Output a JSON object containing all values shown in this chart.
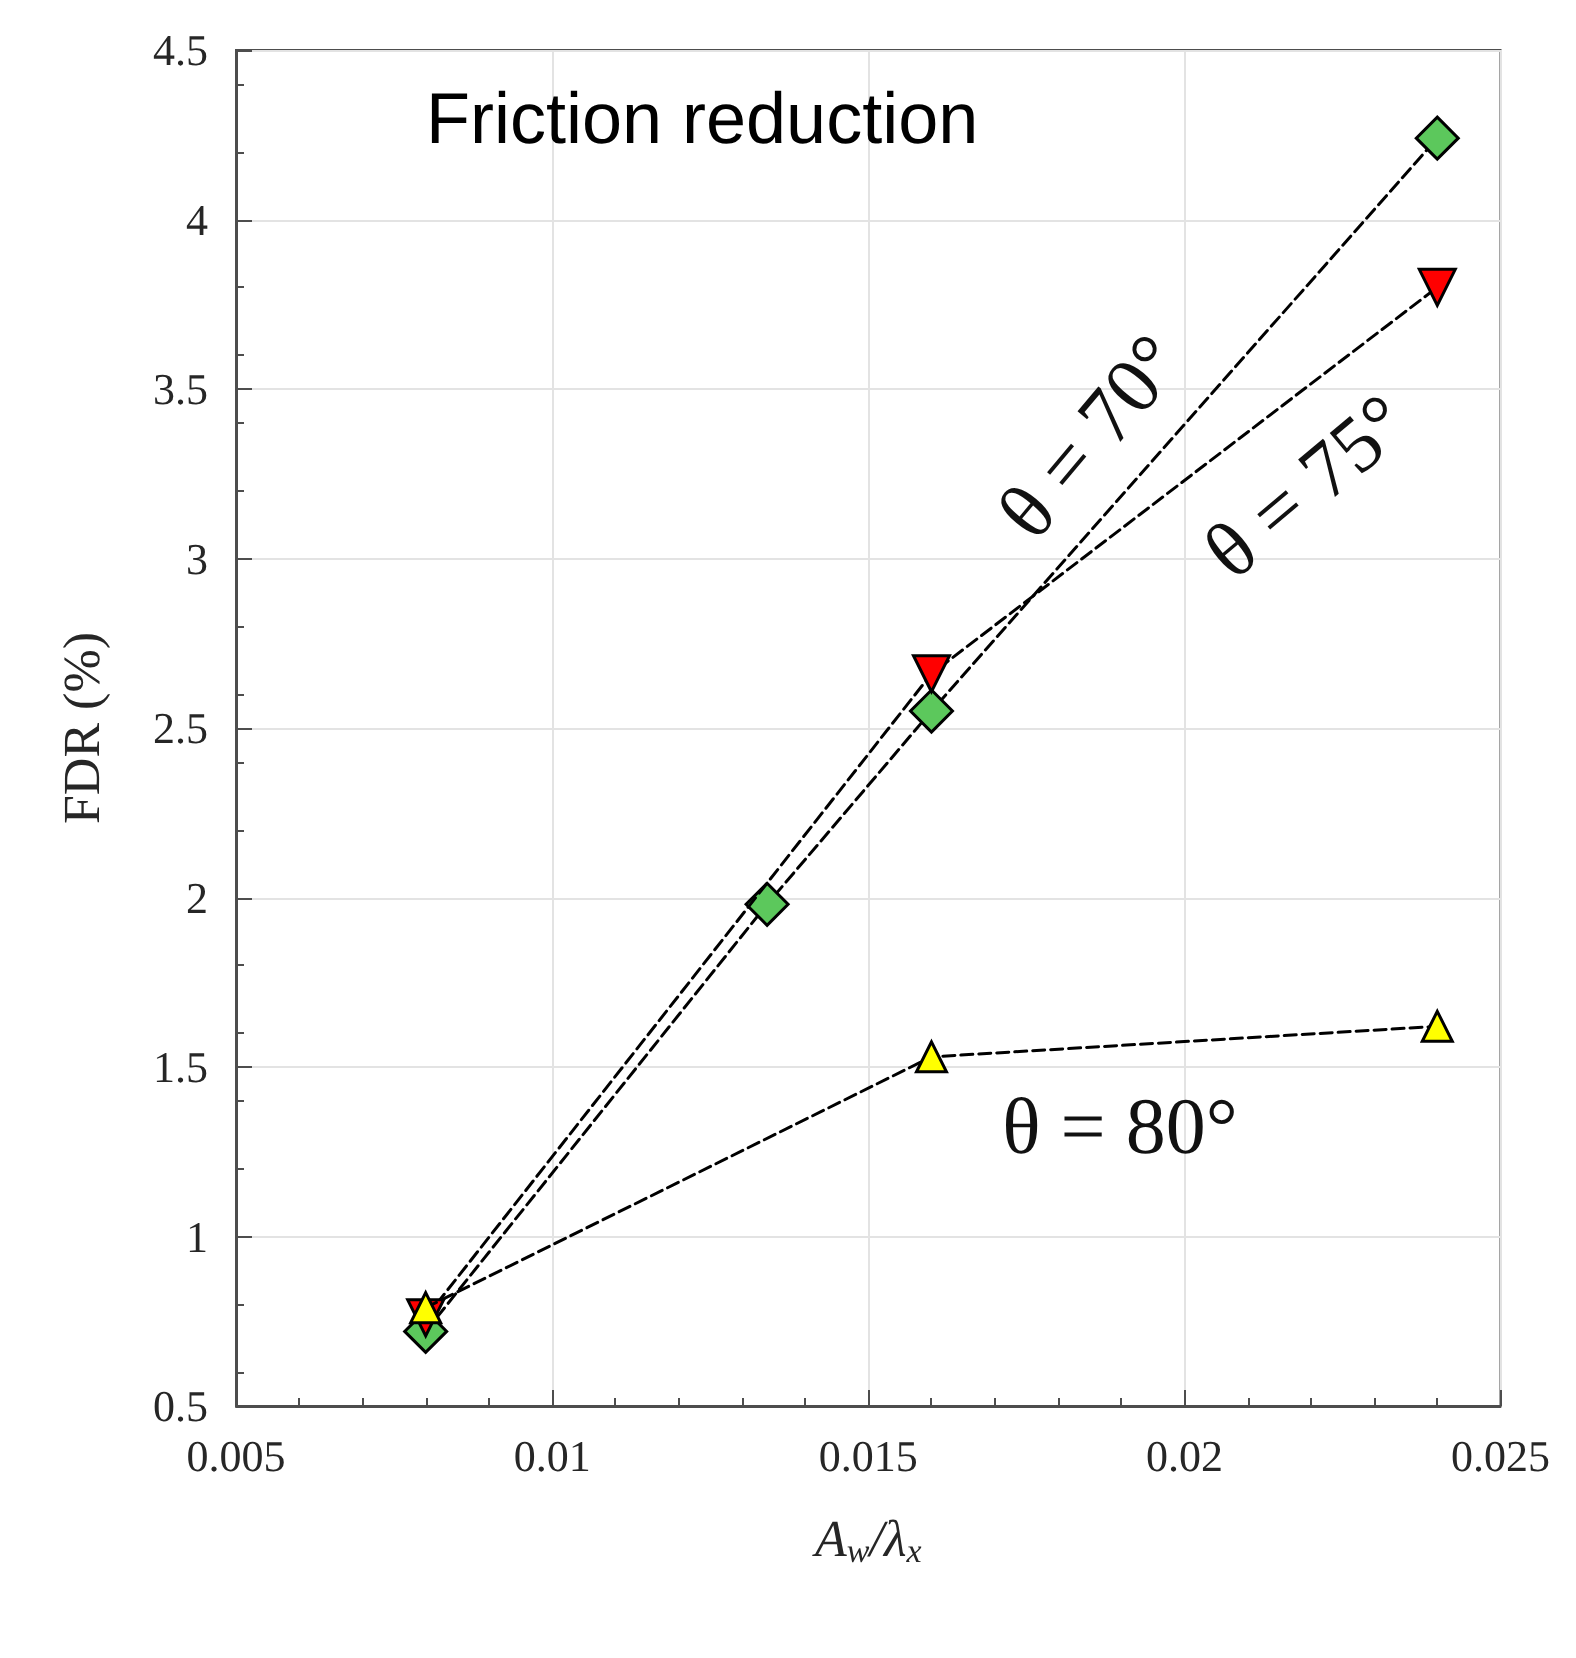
{
  "chart_data": {
    "type": "line",
    "title": "Friction reduction",
    "xlabel": "A$_{w}$/λ$_{x}$",
    "ylabel": "FDR (%)",
    "x": [
      0.008,
      0.0134,
      0.016,
      0.024
    ],
    "series": [
      {
        "color": "#5cc85c",
        "marker": "diamond",
        "values": [
          0.72,
          1.98,
          2.55,
          4.24
        ]
      },
      {
        "color": "#ff0000",
        "marker": "triangle_down",
        "x": [
          0.008,
          0.016,
          0.024
        ],
        "values": [
          0.76,
          2.66,
          3.8
        ]
      },
      {
        "color": "#ffff00",
        "marker": "triangle",
        "x": [
          0.008,
          0.016,
          0.024
        ],
        "values": [
          0.79,
          1.53,
          1.62
        ]
      }
    ],
    "annotations": [
      "θ = 70°",
      "θ = 75°",
      "θ = 80°"
    ],
    "xlim": [
      0.005,
      0.025
    ],
    "xticks": [
      0.005,
      0.01,
      0.015,
      0.02,
      0.025
    ],
    "ylim": [
      0.5,
      4.5
    ],
    "yticks": [
      0.5,
      1,
      1.5,
      2,
      2.5,
      3,
      3.5,
      4,
      4.5
    ],
    "grid": true,
    "line_style": "dashed"
  }
}
